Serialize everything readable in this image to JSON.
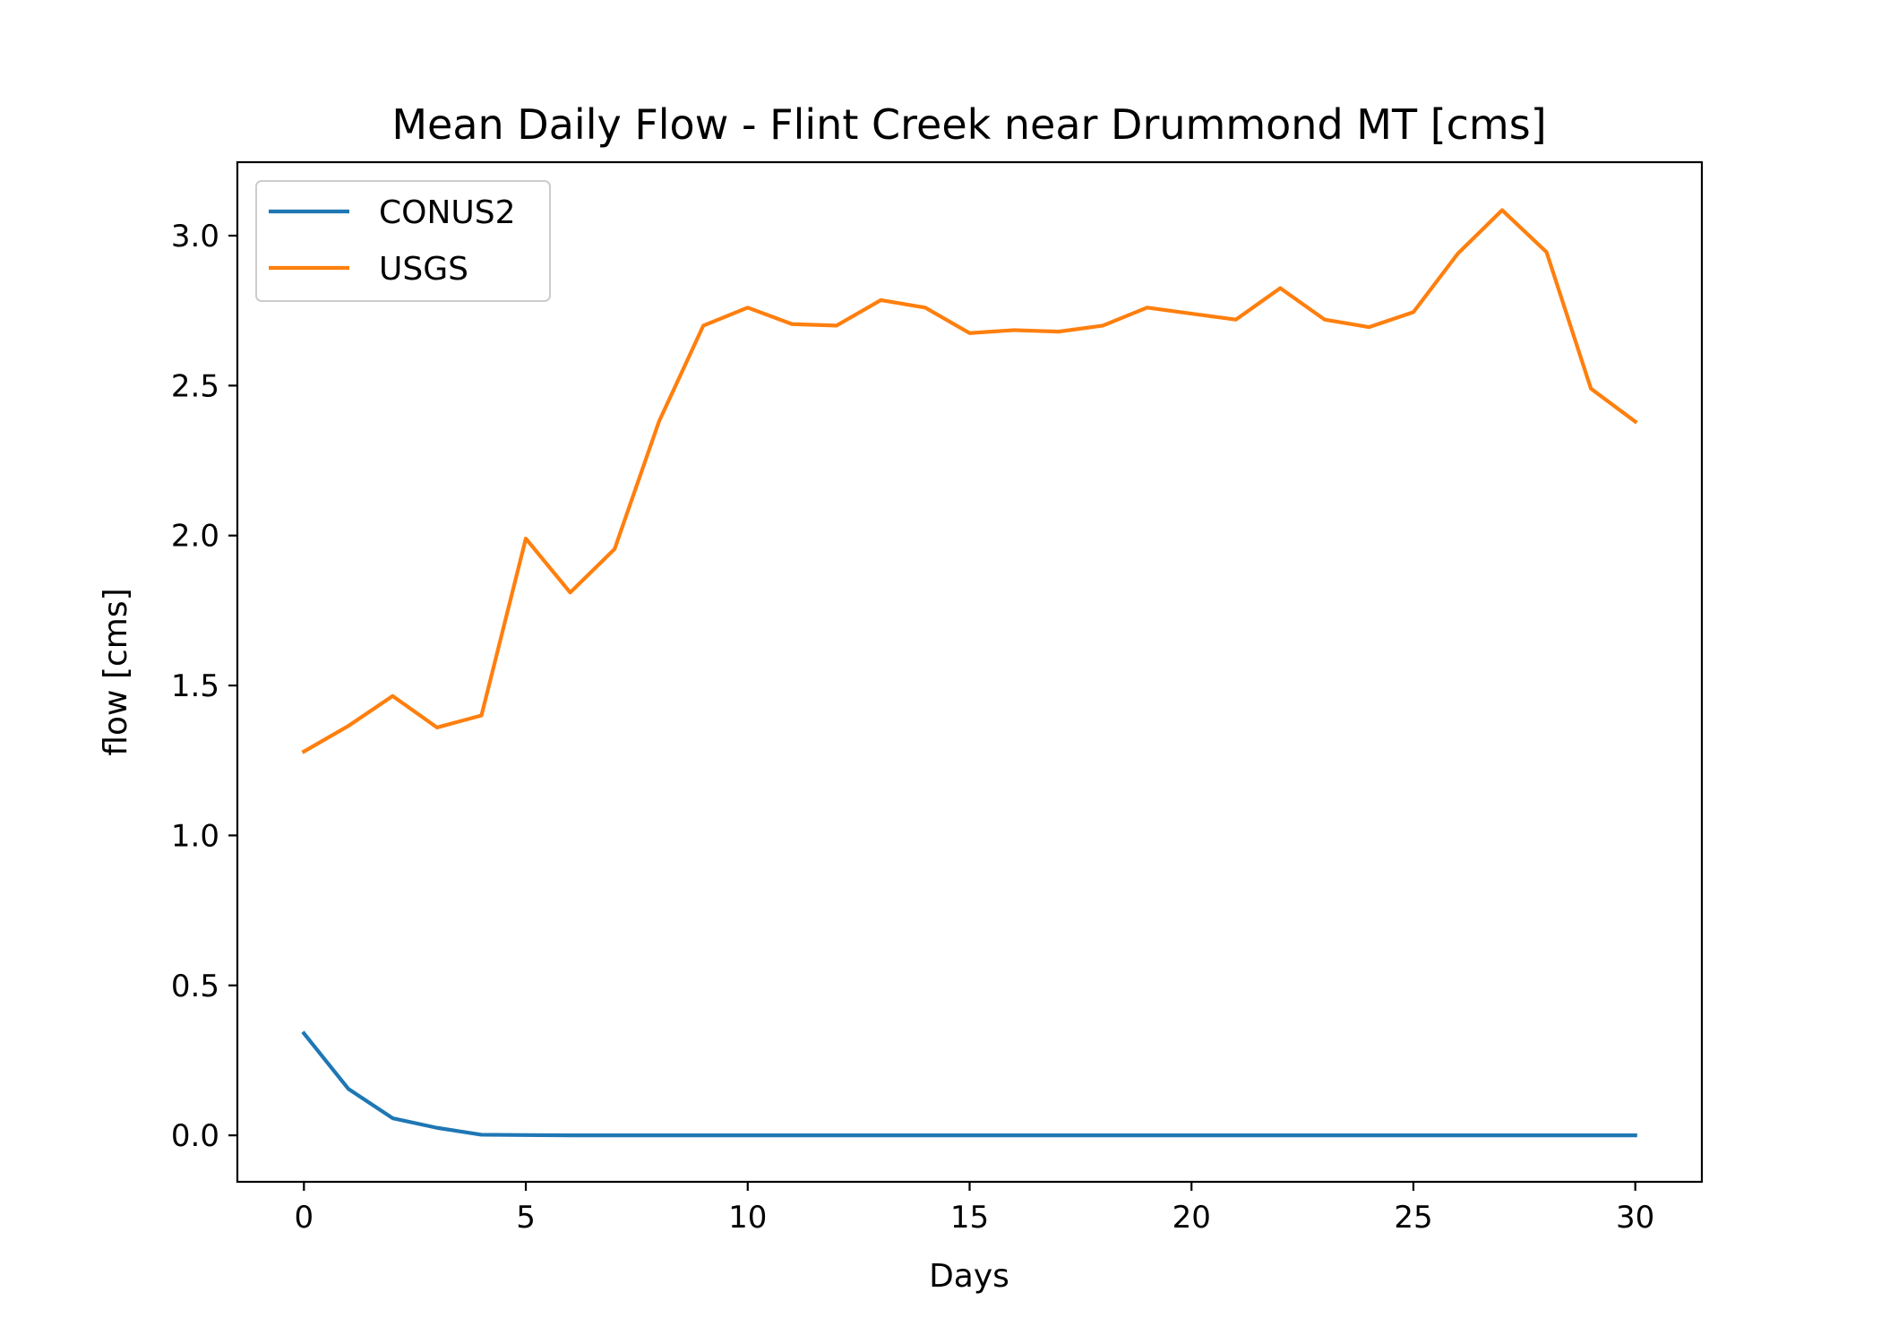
{
  "chart_data": {
    "type": "line",
    "title": "Mean Daily Flow - Flint Creek near Drummond MT [cms]",
    "xlabel": "Days",
    "ylabel": "flow [cms]",
    "xlim": [
      -1.5,
      31.5
    ],
    "ylim": [
      -0.155,
      3.245
    ],
    "xticks": [
      0,
      5,
      10,
      15,
      20,
      25,
      30
    ],
    "xtick_labels": [
      "0",
      "5",
      "10",
      "15",
      "20",
      "25",
      "30"
    ],
    "yticks": [
      0.0,
      0.5,
      1.0,
      1.5,
      2.0,
      2.5,
      3.0
    ],
    "ytick_labels": [
      "0.0",
      "0.5",
      "1.0",
      "1.5",
      "2.0",
      "2.5",
      "3.0"
    ],
    "grid": false,
    "legend_position": "top-left",
    "x": [
      0,
      1,
      2,
      3,
      4,
      5,
      6,
      7,
      8,
      9,
      10,
      11,
      12,
      13,
      14,
      15,
      16,
      17,
      18,
      19,
      20,
      21,
      22,
      23,
      24,
      25,
      26,
      27,
      28,
      29,
      30
    ],
    "series": [
      {
        "name": "CONUS2",
        "color": "#1f77b4",
        "values": [
          0.34,
          0.155,
          0.057,
          0.025,
          0.002,
          0.001,
          0.0,
          0.0,
          0.0,
          0.0,
          0.0,
          0.0,
          0.0,
          0.0,
          0.0,
          0.0,
          0.0,
          0.0,
          0.0,
          0.0,
          0.0,
          0.0,
          0.0,
          0.0,
          0.0,
          0.0,
          0.0,
          0.0,
          0.0,
          0.0,
          0.0
        ]
      },
      {
        "name": "USGS",
        "color": "#ff7f0e",
        "values": [
          1.28,
          1.365,
          1.465,
          1.36,
          1.4,
          1.99,
          1.81,
          1.955,
          2.38,
          2.7,
          2.76,
          2.705,
          2.7,
          2.785,
          2.76,
          2.675,
          2.685,
          2.68,
          2.7,
          2.76,
          2.74,
          2.72,
          2.825,
          2.72,
          2.695,
          2.745,
          2.94,
          3.085,
          2.945,
          2.49,
          2.38
        ]
      }
    ]
  }
}
